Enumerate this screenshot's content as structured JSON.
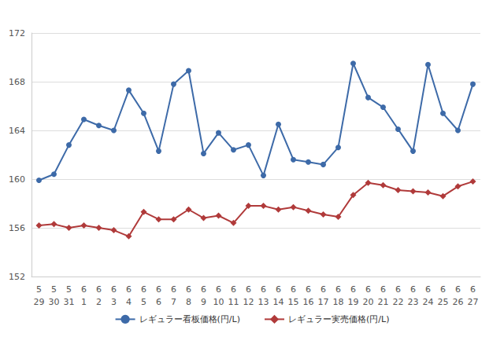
{
  "chart_data": {
    "type": "line",
    "categories": [
      "5\n29",
      "5\n30",
      "5\n31",
      "6\n1",
      "6\n2",
      "6\n3",
      "6\n4",
      "6\n5",
      "6\n6",
      "6\n7",
      "6\n8",
      "6\n9",
      "6\n10",
      "6\n11",
      "6\n12",
      "6\n13",
      "6\n14",
      "6\n15",
      "6\n16",
      "6\n17",
      "6\n18",
      "6\n19",
      "6\n20",
      "6\n21",
      "6\n22",
      "6\n23",
      "6\n24",
      "6\n25",
      "6\n26",
      "6\n27"
    ],
    "series": [
      {
        "name": "レギュラー看板価格(円/L)",
        "color": "#3d6aa8",
        "marker": "circle",
        "values": [
          159.9,
          160.4,
          162.8,
          164.9,
          164.4,
          164.0,
          167.3,
          165.4,
          162.3,
          167.8,
          168.9,
          162.1,
          163.8,
          162.4,
          162.8,
          160.3,
          164.5,
          161.6,
          161.4,
          161.2,
          162.6,
          169.5,
          166.7,
          165.9,
          164.1,
          162.3,
          169.4,
          165.4,
          164.0,
          167.8
        ]
      },
      {
        "name": "レギュラー実売価格(円/L)",
        "color": "#b03a3a",
        "marker": "diamond",
        "values": [
          156.2,
          156.3,
          156.0,
          156.2,
          156.0,
          155.8,
          155.3,
          157.3,
          156.7,
          156.7,
          157.5,
          156.8,
          157.0,
          156.4,
          157.8,
          157.8,
          157.5,
          157.7,
          157.4,
          157.1,
          156.9,
          158.7,
          159.7,
          159.5,
          159.1,
          159.0,
          158.9,
          158.6,
          159.4,
          159.8
        ]
      }
    ],
    "ylim": [
      152,
      172
    ],
    "yticks": [
      152,
      156,
      160,
      164,
      168,
      172
    ],
    "grid": true,
    "legend": "bottom"
  }
}
